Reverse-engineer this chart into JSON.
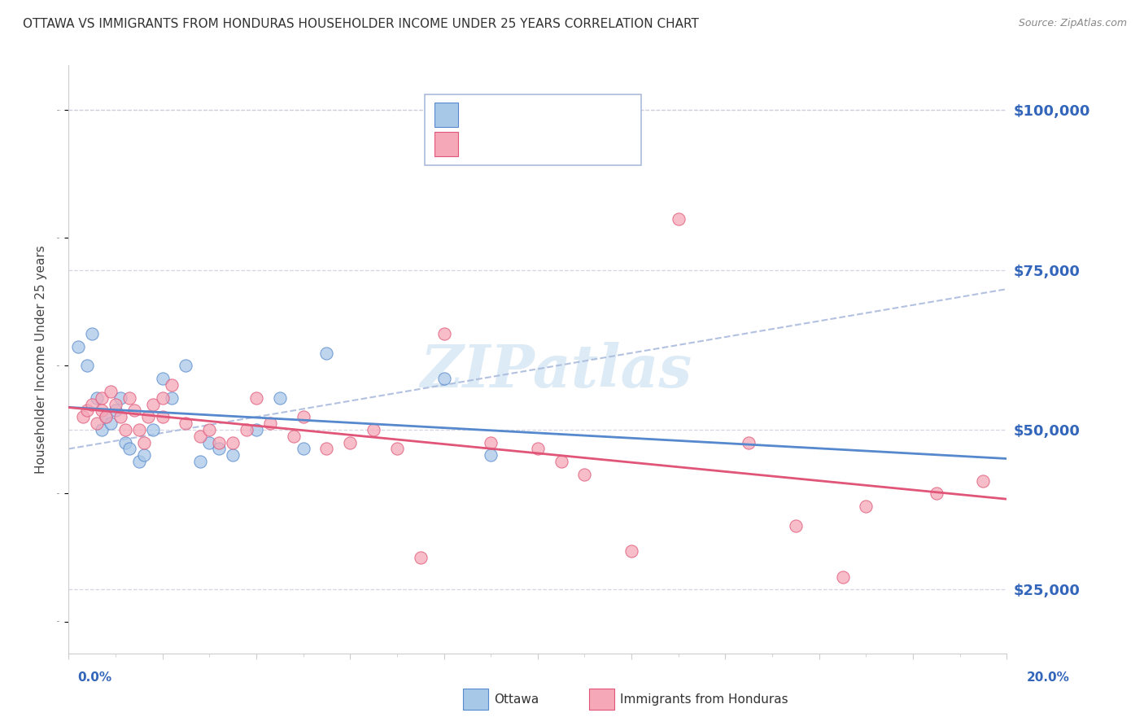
{
  "title": "OTTAWA VS IMMIGRANTS FROM HONDURAS HOUSEHOLDER INCOME UNDER 25 YEARS CORRELATION CHART",
  "source": "Source: ZipAtlas.com",
  "ylabel": "Householder Income Under 25 years",
  "xlim": [
    0.0,
    20.0
  ],
  "ylim": [
    15000,
    107000
  ],
  "yticks": [
    25000,
    50000,
    75000,
    100000
  ],
  "ytick_labels": [
    "$25,000",
    "$50,000",
    "$75,000",
    "$100,000"
  ],
  "ottawa_color": "#a8c8e8",
  "honduras_color": "#f5a8b8",
  "trendline_ottawa_color": "#5588cc",
  "trendline_honduras_color": "#e05578",
  "dashed_line_color": "#aabbdd",
  "background_color": "#ffffff",
  "grid_color": "#ccccdd",
  "axis_label_color": "#3366bb",
  "watermark": "ZIPatlas",
  "ottawa_x": [
    0.2,
    0.4,
    0.5,
    0.6,
    0.7,
    0.8,
    0.9,
    1.0,
    1.1,
    1.2,
    1.3,
    1.5,
    1.6,
    1.8,
    2.0,
    2.2,
    2.5,
    2.8,
    3.0,
    3.2,
    3.5,
    4.0,
    4.5,
    5.0,
    5.5,
    8.0,
    9.0
  ],
  "ottawa_y": [
    63000,
    60000,
    65000,
    55000,
    50000,
    52000,
    51000,
    53000,
    55000,
    48000,
    47000,
    45000,
    46000,
    50000,
    58000,
    55000,
    60000,
    45000,
    48000,
    47000,
    46000,
    50000,
    55000,
    47000,
    62000,
    58000,
    46000
  ],
  "honduras_x": [
    0.3,
    0.4,
    0.5,
    0.6,
    0.7,
    0.7,
    0.8,
    0.9,
    1.0,
    1.1,
    1.2,
    1.3,
    1.4,
    1.5,
    1.6,
    1.7,
    1.8,
    2.0,
    2.0,
    2.2,
    2.5,
    2.8,
    3.0,
    3.2,
    3.5,
    3.8,
    4.0,
    4.3,
    4.8,
    5.0,
    5.5,
    6.0,
    6.5,
    7.0,
    7.5,
    8.0,
    9.0,
    10.0,
    10.5,
    11.0,
    12.0,
    13.0,
    14.5,
    15.5,
    16.5,
    17.0,
    18.5,
    19.5
  ],
  "honduras_y": [
    52000,
    53000,
    54000,
    51000,
    55000,
    53000,
    52000,
    56000,
    54000,
    52000,
    50000,
    55000,
    53000,
    50000,
    48000,
    52000,
    54000,
    52000,
    55000,
    57000,
    51000,
    49000,
    50000,
    48000,
    48000,
    50000,
    55000,
    51000,
    49000,
    52000,
    47000,
    48000,
    50000,
    47000,
    30000,
    65000,
    48000,
    47000,
    45000,
    43000,
    31000,
    83000,
    48000,
    35000,
    27000,
    38000,
    40000,
    42000
  ],
  "legend_r1_color": "#3366bb",
  "legend_r2_color": "#3366bb"
}
